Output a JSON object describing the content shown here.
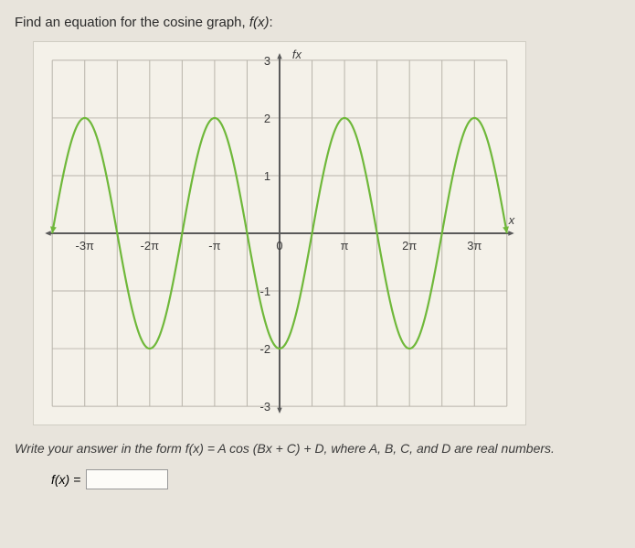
{
  "prompt_lead": "Find an equation for the cosine graph, ",
  "prompt_fn": "f(x)",
  "prompt_tail": ":",
  "chart": {
    "type": "line",
    "curve_color": "#6fb83a",
    "grid_color": "#b8b4aa",
    "axis_color": "#5a5a5a",
    "background": "#f4f1e9",
    "x_domain_pi": [
      -3.5,
      3.5
    ],
    "y_domain": [
      -3,
      3
    ],
    "x_tick_step_pi": 0.5,
    "y_tick_step": 1,
    "x_labels_pi": [
      {
        "v": -3,
        "t": "-3π"
      },
      {
        "v": -2,
        "t": "-2π"
      },
      {
        "v": -1,
        "t": "-π"
      },
      {
        "v": 0,
        "t": "0"
      },
      {
        "v": 1,
        "t": "π"
      },
      {
        "v": 2,
        "t": "2π"
      },
      {
        "v": 3,
        "t": "3π"
      }
    ],
    "y_labels": [
      {
        "v": 3,
        "t": "3"
      },
      {
        "v": 2,
        "t": "2"
      },
      {
        "v": 1,
        "t": "1"
      },
      {
        "v": -1,
        "t": "-1"
      },
      {
        "v": -2,
        "t": "-2"
      },
      {
        "v": -3,
        "t": "-3"
      }
    ],
    "y_axis_title": "fx",
    "x_axis_title": "x",
    "function": {
      "A": 2,
      "B": 1,
      "C": 0,
      "D": 0,
      "form": "A*cos(B*(x)+C-π)+D"
    },
    "line_width": 2.2
  },
  "instruction": "Write your answer in the form f(x) = A cos (Bx + C) + D, where A, B, C, and D are real numbers.",
  "answer_label": "f(x) =",
  "answer_value": ""
}
